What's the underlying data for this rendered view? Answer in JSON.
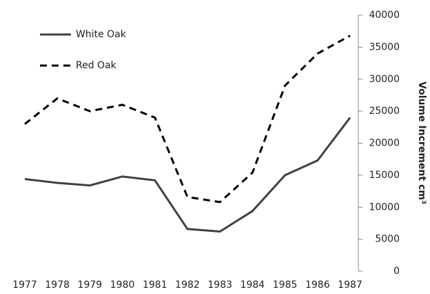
{
  "chart_data": {
    "type": "line",
    "y_label": "Volume Increment cm³",
    "categories": [
      "1977",
      "1978",
      "1979",
      "1980",
      "1981",
      "1982",
      "1983",
      "1984",
      "1985",
      "1986",
      "1987"
    ],
    "series": [
      {
        "name": "White Oak",
        "color": "#404040",
        "line_style": "solid",
        "values": [
          14400,
          13800,
          13400,
          14800,
          14200,
          6600,
          6200,
          9400,
          15000,
          17300,
          24000
        ]
      },
      {
        "name": "Red Oak",
        "color": "#000000",
        "line_style": "dashed",
        "values": [
          23000,
          27000,
          25000,
          26000,
          24000,
          11600,
          10800,
          15400,
          29000,
          34000,
          36800
        ]
      }
    ],
    "ylim": [
      0,
      40000
    ],
    "yticks": [
      0,
      5000,
      10000,
      15000,
      20000,
      25000,
      30000,
      35000,
      40000
    ],
    "y_axis_side": "right",
    "legend": "upper left"
  }
}
